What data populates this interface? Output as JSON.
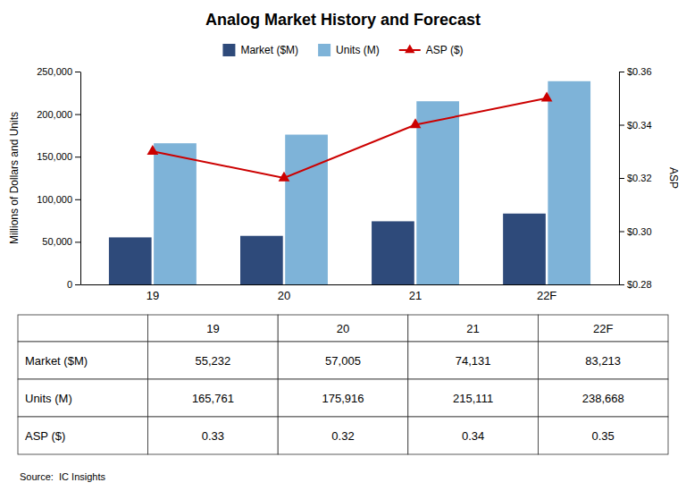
{
  "chart_data": {
    "type": "bar",
    "title": "Analog Market History and Forecast",
    "categories": [
      "19",
      "20",
      "21",
      "22F"
    ],
    "series": [
      {
        "name": "Market ($M)",
        "color": "#2E4A7A",
        "values": [
          55232,
          57005,
          74131,
          83213
        ]
      },
      {
        "name": "Units (M)",
        "color": "#7EB3D8",
        "values": [
          165761,
          175916,
          215111,
          238668
        ]
      },
      {
        "name": "ASP ($)",
        "color": "#CC0000",
        "type": "line",
        "axis": "y2",
        "marker": "triangle",
        "values": [
          0.33,
          0.32,
          0.34,
          0.35
        ]
      }
    ],
    "ylabel": "Millions of Dollars and Units",
    "y2label": "ASP",
    "ylim": [
      0,
      250000
    ],
    "yticks": [
      0,
      {
        "value": 50000,
        "label": "50,000"
      },
      {
        "value": 100000,
        "label": "100,000"
      },
      {
        "value": 150000,
        "label": "150,000"
      },
      {
        "value": 200000,
        "label": "200,000"
      },
      {
        "value": 250000,
        "label": "250,000"
      }
    ],
    "y2lim": [
      0.28,
      0.36
    ],
    "y2ticks": [
      {
        "value": 0.28,
        "label": "$0.28"
      },
      {
        "value": 0.3,
        "label": "$0.30"
      },
      {
        "value": 0.32,
        "label": "$0.32"
      },
      {
        "value": 0.34,
        "label": "$0.34"
      },
      {
        "value": 0.36,
        "label": "$0.36"
      }
    ],
    "grid": false,
    "legend": "top",
    "table": {
      "rows": [
        "Market ($M)",
        "Units (M)",
        "ASP ($)"
      ],
      "cells": [
        [
          "55,232",
          "57,005",
          "74,131",
          "83,213"
        ],
        [
          "165,761",
          "175,916",
          "215,111",
          "238,668"
        ],
        [
          "0.33",
          "0.32",
          "0.34",
          "0.35"
        ]
      ]
    },
    "source": "Source:  IC Insights"
  }
}
